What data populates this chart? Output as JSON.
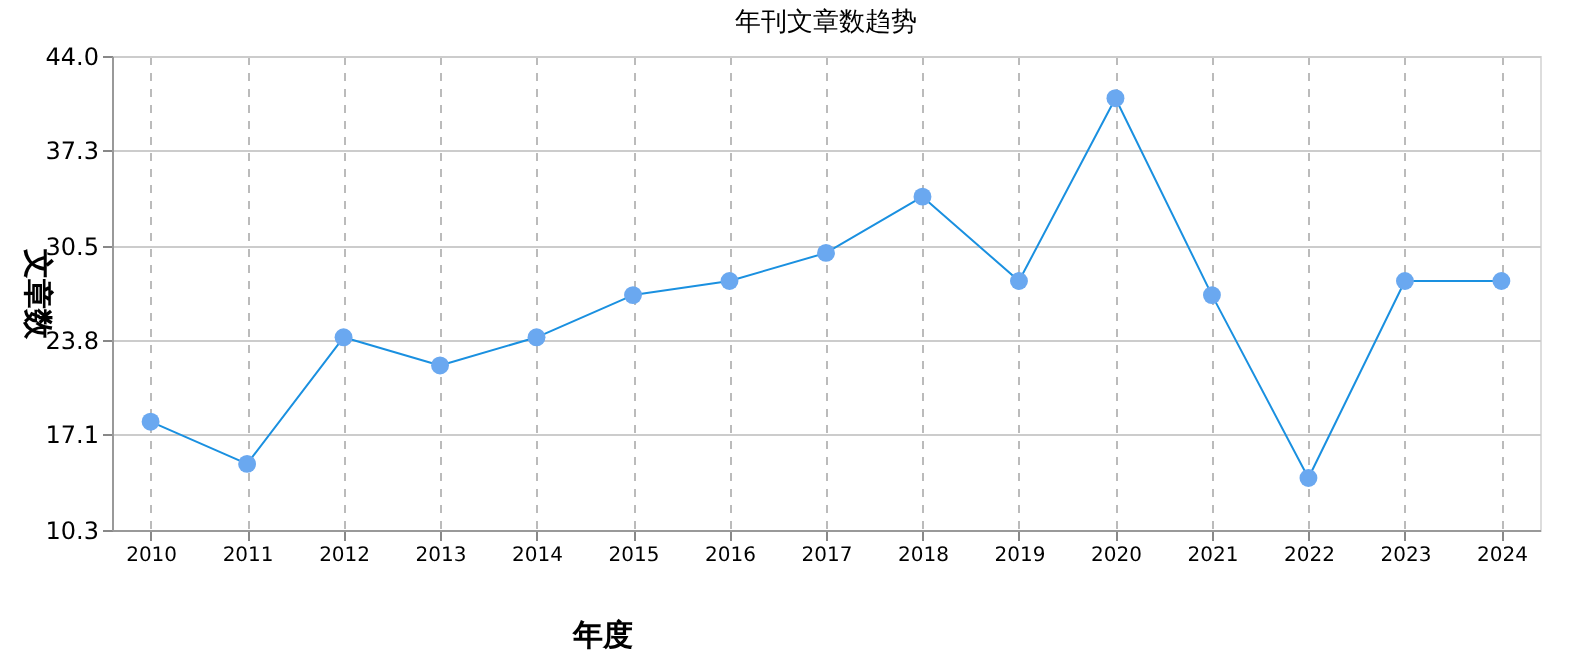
{
  "chart_data": {
    "type": "line",
    "title": "年刊文章数趋势",
    "xlabel": "年度",
    "ylabel": "文章数",
    "categories": [
      "2010",
      "2011",
      "2012",
      "2013",
      "2014",
      "2015",
      "2016",
      "2017",
      "2018",
      "2019",
      "2020",
      "2021",
      "2022",
      "2023",
      "2024"
    ],
    "series": [
      {
        "color": "#1a90e0",
        "values": [
          18,
          15,
          24,
          22,
          24,
          27,
          28,
          30,
          34,
          28,
          41,
          27,
          14,
          28,
          28
        ]
      }
    ],
    "ylim": [
      10.3,
      44.0
    ],
    "yticks": [
      {
        "value": 10.3,
        "label": "10.3"
      },
      {
        "value": 17.1,
        "label": "17.1"
      },
      {
        "value": 23.8,
        "label": "23.8"
      },
      {
        "value": 30.5,
        "label": "30.5"
      },
      {
        "value": 37.3,
        "label": "37.3"
      },
      {
        "value": 44.0,
        "label": "44.0"
      }
    ],
    "grid": true,
    "marker": "circle",
    "line_style": "solid"
  }
}
